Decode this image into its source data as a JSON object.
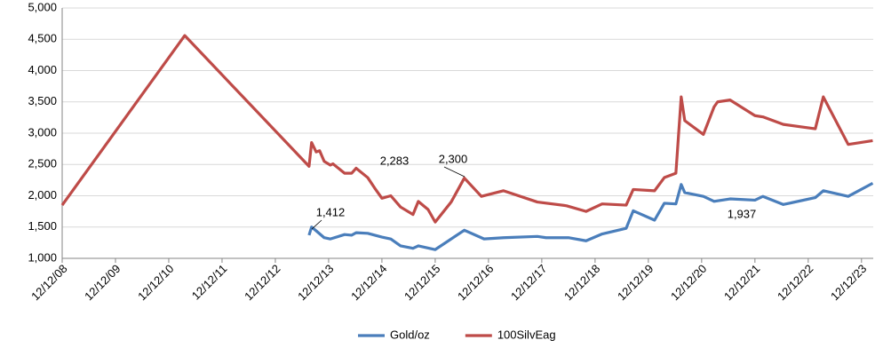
{
  "chart_data": {
    "type": "line",
    "xlim": [
      "12/12/08",
      "03/01/24"
    ],
    "xticks": [
      "12/12/08",
      "12/12/09",
      "12/12/10",
      "12/12/11",
      "12/12/12",
      "12/12/13",
      "12/12/14",
      "12/12/15",
      "12/12/16",
      "12/12/17",
      "12/12/18",
      "12/12/19",
      "12/12/20",
      "12/12/21",
      "12/12/22",
      "12/12/23"
    ],
    "ylim": [
      1000,
      5000
    ],
    "yticks": [
      {
        "value": 1000,
        "label": "1,000"
      },
      {
        "value": 1500,
        "label": "1,500"
      },
      {
        "value": 2000,
        "label": "2,000"
      },
      {
        "value": 2500,
        "label": "2,500"
      },
      {
        "value": 3000,
        "label": "3,000"
      },
      {
        "value": 3500,
        "label": "3,500"
      },
      {
        "value": 4000,
        "label": "4,000"
      },
      {
        "value": 4500,
        "label": "4,500"
      },
      {
        "value": 5000,
        "label": "5,000"
      }
    ],
    "grid": true,
    "legend": "bottom",
    "annotations": [
      "1,412",
      "2,283",
      "2,300",
      "1,937"
    ],
    "series": [
      {
        "name": "Gold/oz",
        "color": "#4a7ebb",
        "x": [
          "07/30/13",
          "08/17/13",
          "09/18/13",
          "11/12/13",
          "12/24/13",
          "03/30/14",
          "05/18/14",
          "06/18/14",
          "09/06/14",
          "12/12/14",
          "02/12/15",
          "04/18/15",
          "07/12/15",
          "08/18/15",
          "12/12/15",
          "06/29/16",
          "11/12/16",
          "03/24/17",
          "11/12/17",
          "01/11/18",
          "06/12/18",
          "10/11/18",
          "01/30/19",
          "07/12/19",
          "08/30/19",
          "01/24/20",
          "03/30/20",
          "06/18/20",
          "07/24/20",
          "08/18/20",
          "12/24/20",
          "03/06/21",
          "06/24/21",
          "12/12/21",
          "02/06/22",
          "06/24/22",
          "01/30/23",
          "03/24/23",
          "09/12/23",
          "02/28/24"
        ],
        "values": [
          1370,
          1500,
          1440,
          1330,
          1310,
          1380,
          1370,
          1410,
          1400,
          1340,
          1310,
          1200,
          1160,
          1200,
          1140,
          1450,
          1310,
          1330,
          1350,
          1330,
          1330,
          1280,
          1390,
          1480,
          1760,
          1610,
          1880,
          1870,
          2180,
          2050,
          1990,
          1910,
          1950,
          1930,
          1990,
          1860,
          1970,
          2080,
          1990,
          2200
        ]
      },
      {
        "name": "100SilvEag",
        "color": "#be4b48",
        "x": [
          "12/12/08",
          "03/30/11",
          "07/30/13",
          "08/17/13",
          "09/18/13",
          "10/11/13",
          "11/12/13",
          "12/24/13",
          "01/11/14",
          "03/30/14",
          "05/18/14",
          "06/18/14",
          "09/06/14",
          "10/24/14",
          "12/12/14",
          "02/12/15",
          "04/18/15",
          "07/12/15",
          "08/18/15",
          "10/24/15",
          "12/12/15",
          "03/30/16",
          "06/29/16",
          "10/24/16",
          "03/24/17",
          "11/12/17",
          "05/30/18",
          "10/11/18",
          "01/30/19",
          "07/12/19",
          "08/30/19",
          "01/24/20",
          "03/30/20",
          "06/18/20",
          "07/24/20",
          "08/18/20",
          "12/24/20",
          "03/06/21",
          "03/30/21",
          "06/24/21",
          "12/12/21",
          "02/06/22",
          "06/24/22",
          "01/30/23",
          "03/24/23",
          "09/12/23",
          "02/28/24"
        ],
        "values": [
          1850,
          4560,
          2470,
          2850,
          2700,
          2720,
          2550,
          2490,
          2510,
          2360,
          2360,
          2440,
          2290,
          2120,
          1960,
          2000,
          1820,
          1700,
          1910,
          1780,
          1580,
          1900,
          2283,
          1990,
          2080,
          1900,
          1840,
          1750,
          1870,
          1850,
          2100,
          2080,
          2290,
          2360,
          3580,
          3200,
          2980,
          3420,
          3500,
          3530,
          3280,
          3260,
          3140,
          3070,
          3580,
          2820,
          2880
        ]
      }
    ]
  }
}
